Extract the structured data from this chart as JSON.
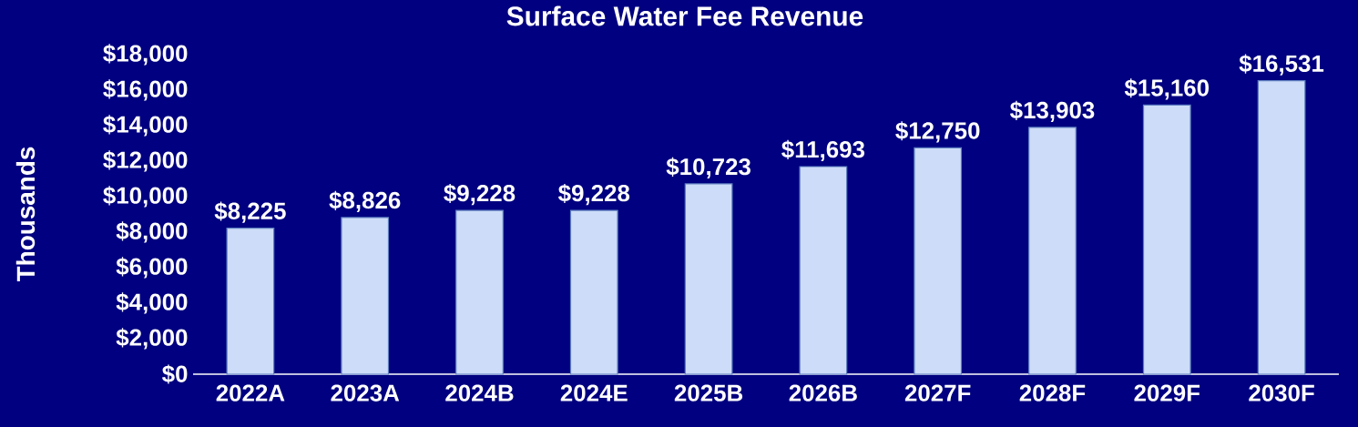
{
  "chart_data": {
    "type": "bar",
    "title": "Surface Water Fee Revenue",
    "ylabel": "Thousands",
    "categories": [
      "2022A",
      "2023A",
      "2024B",
      "2024E",
      "2025B",
      "2026B",
      "2027F",
      "2028F",
      "2029F",
      "2030F"
    ],
    "values": [
      8225,
      8826,
      9228,
      9228,
      10723,
      11693,
      12750,
      13903,
      15160,
      16531
    ],
    "value_labels": [
      "$8,225",
      "$8,826",
      "$9,228",
      "$9,228",
      "$10,723",
      "$11,693",
      "$12,750",
      "$13,903",
      "$15,160",
      "$16,531"
    ],
    "color": "#cddcf8",
    "ylim": [
      0,
      18000
    ],
    "yticks": [
      {
        "value": 0,
        "label": "$0"
      },
      {
        "value": 2000,
        "label": "$2,000"
      },
      {
        "value": 4000,
        "label": "$4,000"
      },
      {
        "value": 6000,
        "label": "$6,000"
      },
      {
        "value": 8000,
        "label": "$8,000"
      },
      {
        "value": 10000,
        "label": "$10,000"
      },
      {
        "value": 12000,
        "label": "$12,000"
      },
      {
        "value": 14000,
        "label": "$14,000"
      },
      {
        "value": 16000,
        "label": "$16,000"
      },
      {
        "value": 18000,
        "label": "$18,000"
      }
    ]
  }
}
